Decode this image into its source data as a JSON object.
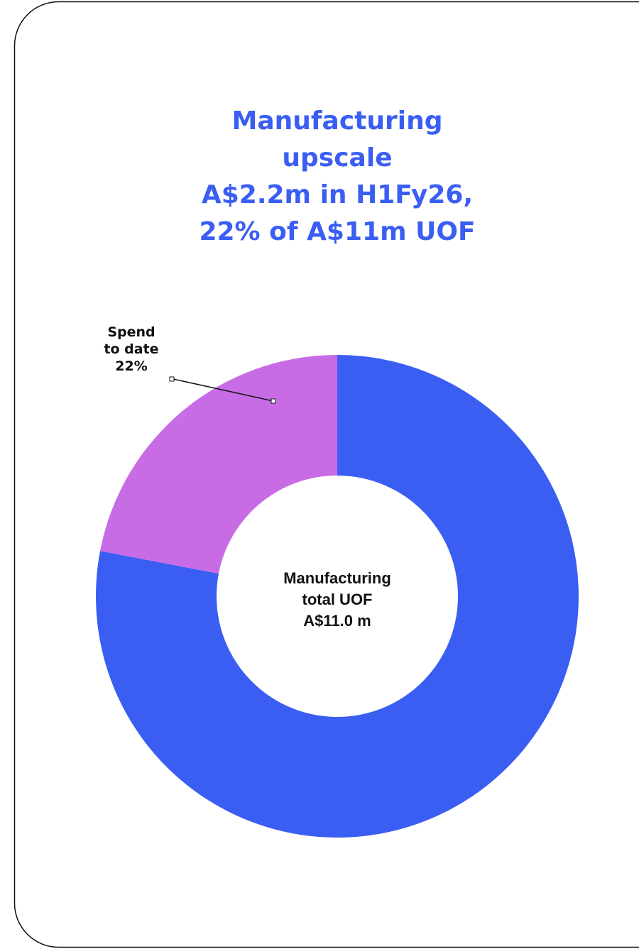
{
  "chart_data": {
    "type": "pie",
    "donut": true,
    "title": [
      "Manufacturing",
      "upscale",
      "A$2.2m in H1Fy26,",
      "22% of A$11m UOF"
    ],
    "categories": [
      "Spend to date",
      null
    ],
    "values": [
      22,
      78
    ],
    "value_labels": [
      "22%",
      null
    ],
    "colors": [
      "#c86ce6",
      "#3b5ef2"
    ],
    "center_label": [
      "Manufacturing",
      "total UOF",
      "A$11.0 m"
    ]
  }
}
